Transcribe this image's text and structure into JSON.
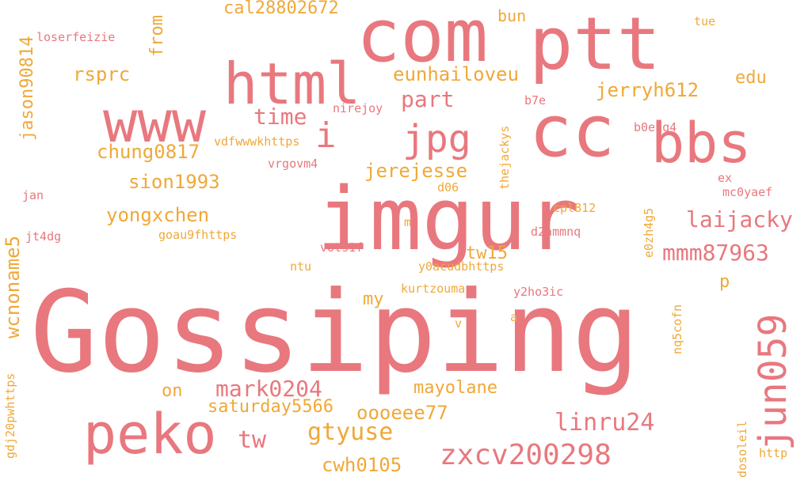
{
  "colors": {
    "pink": "#e8787e",
    "orange": "#f0a838",
    "background": "#ffffff"
  },
  "words": [
    {
      "text": "Gossiping",
      "color": "pink"
    },
    {
      "text": "imgur",
      "color": "pink"
    },
    {
      "text": "com",
      "color": "pink"
    },
    {
      "text": "ptt",
      "color": "pink"
    },
    {
      "text": "cc",
      "color": "pink"
    },
    {
      "text": "html",
      "color": "pink"
    },
    {
      "text": "www",
      "color": "pink"
    },
    {
      "text": "bbs",
      "color": "pink"
    },
    {
      "text": "peko",
      "color": "pink"
    },
    {
      "text": "jpg",
      "color": "pink"
    },
    {
      "text": "jun059",
      "color": "pink"
    },
    {
      "text": "zxcv200298",
      "color": "pink"
    },
    {
      "text": "i",
      "color": "pink"
    },
    {
      "text": "linru24",
      "color": "pink"
    },
    {
      "text": "mark0204",
      "color": "pink"
    },
    {
      "text": "mmm87963",
      "color": "pink"
    },
    {
      "text": "laijacky",
      "color": "pink"
    },
    {
      "text": "jerryh612",
      "color": "orange"
    },
    {
      "text": "part",
      "color": "pink"
    },
    {
      "text": "time",
      "color": "pink"
    },
    {
      "text": "tw",
      "color": "pink"
    },
    {
      "text": "gtyuse",
      "color": "orange"
    },
    {
      "text": "eunhailoveu",
      "color": "orange"
    },
    {
      "text": "cal28802672",
      "color": "orange"
    },
    {
      "text": "sion1993",
      "color": "orange"
    },
    {
      "text": "yongxchen",
      "color": "orange"
    },
    {
      "text": "chung0817",
      "color": "orange"
    },
    {
      "text": "jerejesse",
      "color": "orange"
    },
    {
      "text": "saturday5566",
      "color": "orange"
    },
    {
      "text": "oooeee77",
      "color": "orange"
    },
    {
      "text": "mayolane",
      "color": "orange"
    },
    {
      "text": "cwh0105",
      "color": "orange"
    },
    {
      "text": "rsprc",
      "color": "orange"
    },
    {
      "text": "wcnoname5",
      "color": "orange"
    },
    {
      "text": "jason90814",
      "color": "orange"
    },
    {
      "text": "from",
      "color": "orange"
    },
    {
      "text": "tw15",
      "color": "orange"
    },
    {
      "text": "edu",
      "color": "orange"
    },
    {
      "text": "my",
      "color": "orange"
    },
    {
      "text": "on",
      "color": "orange"
    },
    {
      "text": "bun",
      "color": "orange"
    },
    {
      "text": "p",
      "color": "orange"
    },
    {
      "text": "vdfwwwkhttps",
      "color": "orange"
    },
    {
      "text": "goau9fhttps",
      "color": "orange"
    },
    {
      "text": "y0acudbhttps",
      "color": "orange"
    },
    {
      "text": "gdj20pwhttps",
      "color": "orange"
    },
    {
      "text": "nirejoy",
      "color": "pink"
    },
    {
      "text": "b7e",
      "color": "pink"
    },
    {
      "text": "b0ehq4",
      "color": "pink"
    },
    {
      "text": "loserfeizie",
      "color": "pink"
    },
    {
      "text": "jan",
      "color": "pink"
    },
    {
      "text": "jt4dg",
      "color": "pink"
    },
    {
      "text": "vrgovm4",
      "color": "pink"
    },
    {
      "text": "d06",
      "color": "orange"
    },
    {
      "text": "cpl812",
      "color": "orange"
    },
    {
      "text": "d2ammnq",
      "color": "pink"
    },
    {
      "text": "vots1f",
      "color": "pink"
    },
    {
      "text": "ntu",
      "color": "orange"
    },
    {
      "text": "kurtzouma",
      "color": "orange"
    },
    {
      "text": "y2ho3ic",
      "color": "pink"
    },
    {
      "text": "mc0yaef",
      "color": "pink"
    },
    {
      "text": "ex",
      "color": "pink"
    },
    {
      "text": "e0zh4g5",
      "color": "orange"
    },
    {
      "text": "tue",
      "color": "orange"
    },
    {
      "text": "thejackys",
      "color": "orange"
    },
    {
      "text": "nq5cofn",
      "color": "orange"
    },
    {
      "text": "dosoleil",
      "color": "orange"
    },
    {
      "text": "http",
      "color": "orange"
    },
    {
      "text": "a",
      "color": "orange"
    },
    {
      "text": "v",
      "color": "orange"
    },
    {
      "text": "m",
      "color": "orange"
    }
  ]
}
